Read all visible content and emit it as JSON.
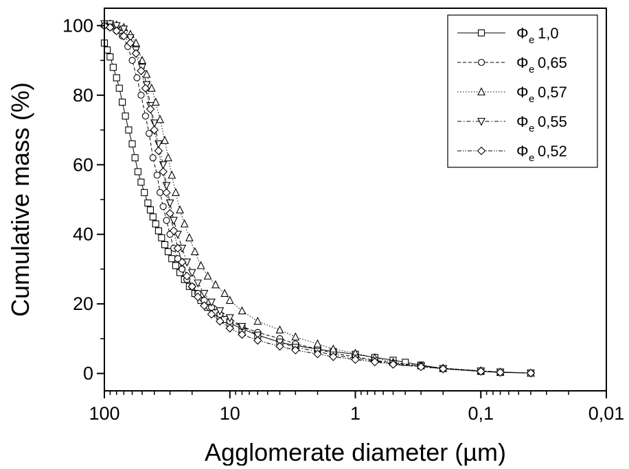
{
  "chart_data": {
    "type": "scatter",
    "title": "",
    "xlabel": "Agglomerate diameter (µm)",
    "ylabel": "Cumulative mass (%)",
    "x_scale": "log",
    "x_reversed": true,
    "xlim": [
      100,
      0.01
    ],
    "ylim": [
      -5,
      105
    ],
    "x_ticks": [
      100,
      10,
      1,
      0.1,
      0.01
    ],
    "x_tick_labels": [
      "100",
      "10",
      "1",
      "0,1",
      "0,01"
    ],
    "y_ticks": [
      0,
      20,
      40,
      60,
      80,
      100
    ],
    "y_tick_labels": [
      "0",
      "20",
      "40",
      "60",
      "80",
      "100"
    ],
    "grid": false,
    "legend_position": "top-right",
    "series": [
      {
        "name": "1,0",
        "marker": "square",
        "line_style": "solid",
        "x": [
          100,
          95,
          90,
          85,
          80,
          76,
          72,
          68,
          64,
          60,
          57,
          54,
          51,
          48,
          45,
          43,
          41,
          39,
          37,
          35,
          33,
          31,
          29,
          27,
          25,
          23,
          21,
          19,
          17,
          15,
          13,
          12,
          11,
          10,
          8,
          6,
          4,
          3,
          2,
          1.5,
          1,
          0.7,
          0.5,
          0.4,
          0.3,
          0.2,
          0.1,
          0.07,
          0.04
        ],
        "y": [
          95,
          93,
          91,
          88,
          85,
          82,
          78,
          74,
          70,
          66,
          62,
          58,
          55,
          52,
          49,
          47,
          45,
          43,
          41,
          39,
          37,
          35,
          33,
          31,
          29,
          27,
          25,
          23,
          21,
          19,
          17.5,
          16.5,
          15.5,
          14.5,
          12.8,
          11,
          9,
          8,
          7,
          6.3,
          5.5,
          4.6,
          3.8,
          3.2,
          2.4,
          1.4,
          0.6,
          0.3,
          0.1
        ]
      },
      {
        "name": "0,65",
        "marker": "circle",
        "line_style": "dashed",
        "x": [
          100,
          90,
          80,
          72,
          65,
          60,
          55,
          51,
          47,
          44,
          41,
          38,
          36,
          34,
          32,
          30,
          28,
          26,
          24,
          22,
          20,
          18,
          16,
          14,
          12,
          10,
          8,
          6,
          4,
          3,
          2,
          1.5,
          1,
          0.7,
          0.5,
          0.3,
          0.2,
          0.1,
          0.07,
          0.04
        ],
        "y": [
          100,
          99.5,
          98.5,
          97,
          94,
          90,
          85,
          80,
          74,
          69,
          62,
          57,
          52,
          48,
          44,
          40,
          36,
          33,
          30,
          27,
          25,
          23,
          21,
          19,
          17,
          15,
          13.5,
          11.8,
          10,
          8.5,
          7,
          5.8,
          4.8,
          3.8,
          3,
          2.2,
          1.5,
          0.7,
          0.4,
          0.1
        ]
      },
      {
        "name": "0,57",
        "marker": "triangle-up",
        "line_style": "dotted",
        "x": [
          100,
          90,
          80,
          70,
          62,
          56,
          50,
          46,
          42,
          39,
          36,
          33,
          31,
          29,
          27,
          25,
          23,
          21,
          19,
          17,
          15,
          13,
          11,
          10,
          8,
          6,
          4,
          3,
          2,
          1.5,
          1,
          0.7,
          0.5,
          0.3,
          0.2,
          0.1,
          0.07,
          0.04
        ],
        "y": [
          100.5,
          100.5,
          100.2,
          99.5,
          97.5,
          95,
          90,
          86,
          82,
          78,
          73,
          67,
          62,
          57,
          52,
          47,
          43,
          39,
          35,
          31,
          28,
          25.5,
          23,
          21,
          18,
          15,
          12.5,
          10.5,
          8.5,
          7,
          5.8,
          4.5,
          3.2,
          2.2,
          1.5,
          0.8,
          0.4,
          0.1
        ]
      },
      {
        "name": "0,55",
        "marker": "triangle-down",
        "line_style": "dash-dot",
        "x": [
          100,
          90,
          80,
          70,
          62,
          56,
          50,
          46,
          43,
          40,
          37,
          34,
          32,
          30,
          28,
          26,
          24,
          22,
          20,
          18,
          16,
          14,
          12,
          10,
          8,
          6,
          4,
          3,
          2,
          1.5,
          1,
          0.7,
          0.5,
          0.3,
          0.2,
          0.1,
          0.07,
          0.04
        ],
        "y": [
          100.5,
          100.5,
          100,
          99,
          96.5,
          93,
          88,
          83,
          77,
          72,
          66,
          60,
          54,
          49,
          44,
          40,
          36,
          32,
          29,
          26,
          23,
          20.5,
          18,
          16,
          13.5,
          11,
          9,
          7.5,
          6.3,
          5.3,
          4.4,
          3.6,
          2.8,
          2,
          1.4,
          0.7,
          0.4,
          0.1
        ]
      },
      {
        "name": "0,52",
        "marker": "diamond",
        "line_style": "dash-dot-dot",
        "x": [
          100,
          90,
          80,
          70,
          62,
          56,
          51,
          47,
          43,
          40,
          37,
          34,
          32,
          30,
          28,
          26,
          24,
          22,
          20,
          18,
          16,
          14,
          12,
          10,
          8,
          6,
          4,
          3,
          2,
          1.5,
          1,
          0.7,
          0.5,
          0.3,
          0.2,
          0.1,
          0.07,
          0.04
        ],
        "y": [
          100,
          99.5,
          98.5,
          97,
          95,
          92,
          87,
          82,
          76,
          70,
          64,
          58,
          52,
          46,
          41,
          36,
          32,
          28,
          25,
          22,
          19.5,
          17,
          15,
          13,
          11.2,
          9.5,
          7.8,
          6.7,
          5.6,
          4.8,
          4,
          3.3,
          2.6,
          1.9,
          1.3,
          0.6,
          0.3,
          0.1
        ]
      }
    ]
  },
  "legend": {
    "symbol": "Φ",
    "subscript": "e"
  }
}
